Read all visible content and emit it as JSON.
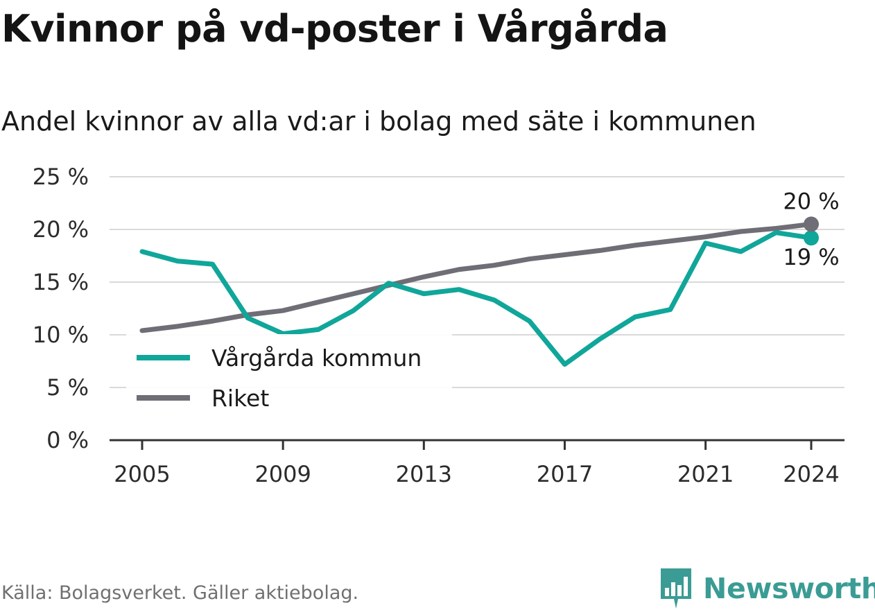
{
  "title": "Kvinnor på vd-poster i Vårgårda",
  "subtitle": "Andel kvinnor av alla vd:ar i bolag med säte i kommunen",
  "source": "Källa: Bolagsverket. Gäller aktiebolag.",
  "brand": {
    "name": "Newsworthy",
    "icon": "newsworthy-logo-icon"
  },
  "chart_data": {
    "type": "line",
    "x": [
      2005,
      2006,
      2007,
      2008,
      2009,
      2010,
      2011,
      2012,
      2013,
      2014,
      2015,
      2016,
      2017,
      2018,
      2019,
      2020,
      2021,
      2022,
      2023,
      2024
    ],
    "x_ticks": [
      2005,
      2009,
      2013,
      2017,
      2021,
      2024
    ],
    "x_tick_labels": [
      "2005",
      "2009",
      "2013",
      "2017",
      "2021",
      "2024"
    ],
    "y_ticks": [
      0,
      5,
      10,
      15,
      20,
      25
    ],
    "y_tick_labels": [
      "0 %",
      "5 %",
      "10 %",
      "15 %",
      "20 %",
      "25 %"
    ],
    "ylim": [
      0,
      25
    ],
    "grid": true,
    "legend_position": "left-middle",
    "series": [
      {
        "name": "Vårgårda kommun",
        "color": "#10a69a",
        "values": [
          17.9,
          17.0,
          16.7,
          11.6,
          10.1,
          10.5,
          12.3,
          14.9,
          13.9,
          14.3,
          13.3,
          11.3,
          7.2,
          9.6,
          11.7,
          12.4,
          18.7,
          17.9,
          19.7,
          19.2
        ],
        "end_label": "19 %"
      },
      {
        "name": "Riket",
        "color": "#6f6d75",
        "values": [
          10.4,
          10.8,
          11.3,
          11.9,
          12.3,
          13.1,
          13.9,
          14.7,
          15.5,
          16.2,
          16.6,
          17.2,
          17.6,
          18.0,
          18.5,
          18.9,
          19.3,
          19.8,
          20.1,
          20.5
        ],
        "end_label": "20 %"
      }
    ]
  }
}
